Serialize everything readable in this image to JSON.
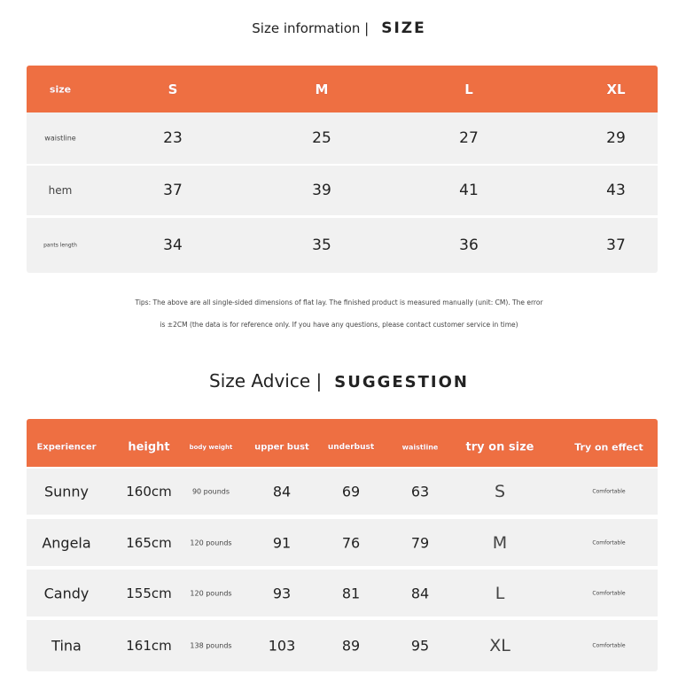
{
  "size_info": {
    "title_light": "Size information |",
    "title_bold": "SIZE",
    "headers": [
      "size",
      "S",
      "M",
      "L",
      "XL"
    ],
    "rows": [
      {
        "label": "waistline",
        "values": [
          "23",
          "25",
          "27",
          "29"
        ]
      },
      {
        "label": "hem",
        "values": [
          "37",
          "39",
          "41",
          "43"
        ]
      },
      {
        "label": "pants length",
        "values": [
          "34",
          "35",
          "36",
          "37"
        ]
      }
    ]
  },
  "tips": [
    "Tips: The above are all single-sided dimensions of flat lay. The finished product is measured manually (unit: CM). The error",
    "is ±2CM (the data is for reference only. If you have any questions, please contact customer service in time)"
  ],
  "advice": {
    "title_light": "Size Advice |",
    "title_bold": "SUGGESTION",
    "headers": [
      "Experiencer",
      "height",
      "body weight",
      "upper bust",
      "underbust",
      "waistline",
      "try on size",
      "Try on effect"
    ],
    "rows": [
      [
        "Sunny",
        "160cm",
        "90 pounds",
        "84",
        "69",
        "63",
        "S",
        "Comfortable"
      ],
      [
        "Angela",
        "165cm",
        "120 pounds",
        "91",
        "76",
        "79",
        "M",
        "Comfortable"
      ],
      [
        "Candy",
        "155cm",
        "120 pounds",
        "93",
        "81",
        "84",
        "L",
        "Comfortable"
      ],
      [
        "Tina",
        "161cm",
        "138 pounds",
        "103",
        "89",
        "95",
        "XL",
        "Comfortable"
      ]
    ]
  },
  "colors": {
    "accent": "#EE6F42",
    "row_bg": "#F1F1F1"
  }
}
